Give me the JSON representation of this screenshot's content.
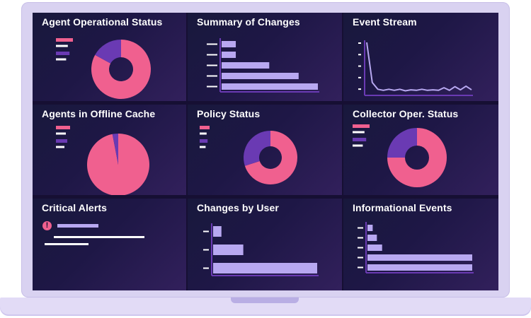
{
  "colors": {
    "pink": "#f0608f",
    "purple": "#6a3ab3",
    "lavender": "#b8a8f1",
    "white": "#ffffff",
    "screen": "#160f33"
  },
  "panels": [
    {
      "key": "agent_status",
      "title": "Agent Operational Status"
    },
    {
      "key": "summary_changes",
      "title": "Summary of Changes"
    },
    {
      "key": "event_stream",
      "title": "Event Stream"
    },
    {
      "key": "offline_cache",
      "title": "Agents in Offline Cache"
    },
    {
      "key": "policy_status",
      "title": "Policy Status"
    },
    {
      "key": "collector_status",
      "title": "Collector Oper. Status"
    },
    {
      "key": "critical_alerts",
      "title": "Critical Alerts",
      "icon": "alert-icon",
      "icon_glyph": "!"
    },
    {
      "key": "changes_by_user",
      "title": "Changes by User"
    },
    {
      "key": "informational_events",
      "title": "Informational Events"
    }
  ],
  "chart_data": [
    {
      "id": "agent_status",
      "type": "pie",
      "style": "donut",
      "values": [
        83,
        17
      ],
      "colors": [
        "#f0608f",
        "#6a3ab3"
      ]
    },
    {
      "id": "summary_changes",
      "type": "bar",
      "orientation": "horizontal",
      "values": [
        14,
        14,
        47,
        76,
        95
      ]
    },
    {
      "id": "event_stream",
      "type": "line",
      "values": [
        95,
        18,
        5,
        3,
        5,
        3,
        5,
        2,
        4,
        3,
        5,
        3,
        4,
        3,
        8,
        3,
        10,
        4,
        11,
        4
      ]
    },
    {
      "id": "offline_cache",
      "type": "pie",
      "values": [
        97,
        3
      ],
      "colors": [
        "#f0608f",
        "#6a3ab3"
      ]
    },
    {
      "id": "policy_status",
      "type": "pie",
      "style": "donut",
      "values": [
        70,
        30
      ],
      "colors": [
        "#f0608f",
        "#6a3ab3"
      ]
    },
    {
      "id": "collector_status",
      "type": "pie",
      "style": "donut",
      "values": [
        75,
        25
      ],
      "colors": [
        "#f0608f",
        "#6a3ab3"
      ]
    },
    {
      "id": "changes_by_user",
      "type": "bar",
      "orientation": "horizontal",
      "values": [
        8,
        29,
        100
      ]
    },
    {
      "id": "informational_events",
      "type": "bar",
      "orientation": "horizontal",
      "values": [
        5,
        9,
        14,
        100,
        100
      ]
    }
  ]
}
